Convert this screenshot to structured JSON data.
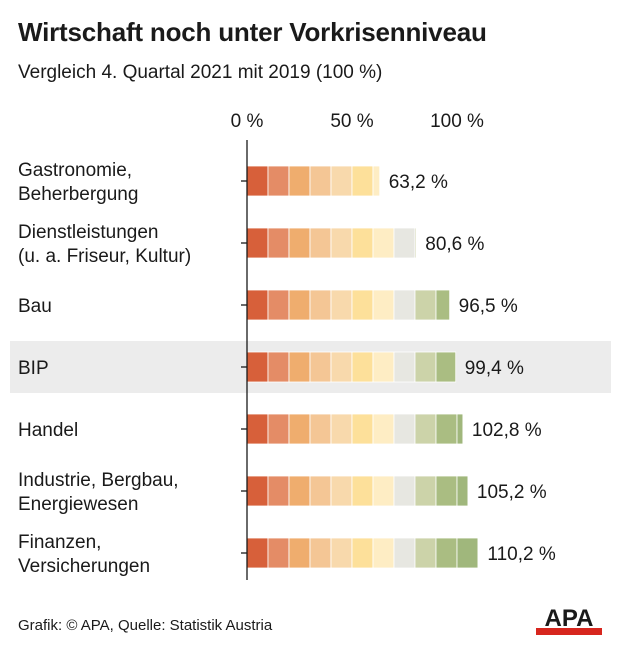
{
  "header": {
    "title": "Wirtschaft noch unter Vorkrisenniveau",
    "subtitle": "Vergleich 4. Quartal 2021 mit 2019 (100 %)"
  },
  "footer": {
    "credit": "Grafik: © APA, Quelle: Statistik Austria"
  },
  "logo": {
    "text": "APA",
    "color": "#d7261e"
  },
  "chart_data": {
    "type": "bar",
    "orientation": "horizontal",
    "categories": [
      [
        "Gastronomie,",
        "Beherbergung"
      ],
      [
        "Dienstleistungen",
        "(u. a. Friseur, Kultur)"
      ],
      [
        "Bau"
      ],
      [
        "BIP"
      ],
      [
        "Handel"
      ],
      [
        "Industrie, Bergbau,",
        "Energiewesen"
      ],
      [
        "Finanzen,",
        "Versicherungen"
      ]
    ],
    "values": [
      63.2,
      80.6,
      96.5,
      99.4,
      102.8,
      105.2,
      110.2
    ],
    "value_labels": [
      "63,2 %",
      "80,6 %",
      "96,5 %",
      "99,4 %",
      "102,8 %",
      "105,2 %",
      "110,2 %"
    ],
    "highlight_category": "BIP",
    "xlim": [
      0,
      110.2
    ],
    "xticks": [
      0,
      50,
      100
    ],
    "xtick_labels": [
      "0 %",
      "50 %",
      "100 %"
    ],
    "segment_step": 10,
    "segment_colors": [
      "#d7603a",
      "#e48c66",
      "#efad6e",
      "#f4c695",
      "#f8d9ac",
      "#fde09a",
      "#feedc4",
      "#e7e7e1",
      "#ccd3a9",
      "#aabd82",
      "#a0b77c"
    ],
    "highlight_color": "#ececec"
  }
}
